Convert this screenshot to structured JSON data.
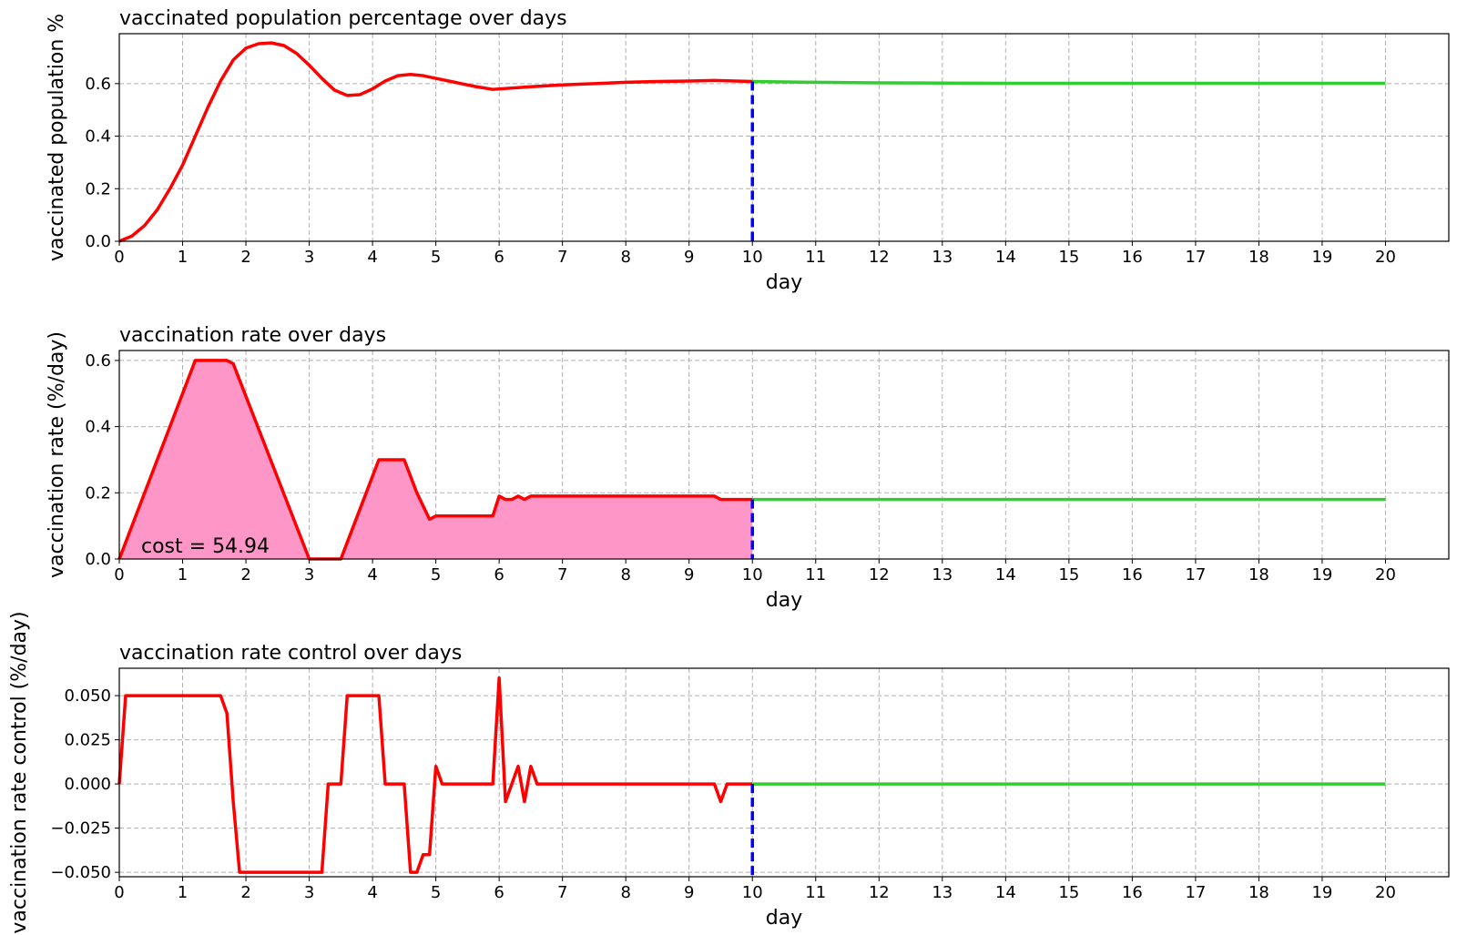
{
  "chart_data": [
    {
      "type": "line",
      "title": "vaccinated population percentage over days",
      "xlabel": "day",
      "ylabel": "vaccinated population %",
      "xlim": [
        0,
        21
      ],
      "ylim": [
        0,
        0.79
      ],
      "xticks": [
        "0",
        "1",
        "2",
        "3",
        "4",
        "5",
        "6",
        "7",
        "8",
        "9",
        "10",
        "11",
        "12",
        "13",
        "14",
        "15",
        "16",
        "17",
        "18",
        "19",
        "20"
      ],
      "yticks": [
        "0.0",
        "0.2",
        "0.4",
        "0.6"
      ],
      "grid": true,
      "split_day": 10,
      "series": [
        {
          "color": "#ff0000",
          "x": [
            0,
            0.2,
            0.4,
            0.6,
            0.8,
            1.0,
            1.2,
            1.4,
            1.6,
            1.8,
            2.0,
            2.2,
            2.4,
            2.6,
            2.8,
            3.0,
            3.2,
            3.4,
            3.6,
            3.8,
            4.0,
            4.2,
            4.4,
            4.6,
            4.8,
            5.0,
            5.3,
            5.6,
            5.9,
            6.5,
            7.0,
            7.5,
            8.0,
            8.5,
            9.0,
            9.4,
            10.0
          ],
          "y": [
            0.0,
            0.02,
            0.06,
            0.12,
            0.2,
            0.29,
            0.4,
            0.51,
            0.61,
            0.69,
            0.735,
            0.752,
            0.755,
            0.745,
            0.715,
            0.67,
            0.62,
            0.575,
            0.555,
            0.558,
            0.58,
            0.61,
            0.63,
            0.635,
            0.63,
            0.62,
            0.605,
            0.59,
            0.578,
            0.588,
            0.595,
            0.6,
            0.605,
            0.608,
            0.61,
            0.612,
            0.608
          ]
        },
        {
          "color": "#32cd32",
          "x": [
            10,
            11,
            12,
            13,
            14,
            15,
            16,
            17,
            18,
            19,
            20
          ],
          "y": [
            0.608,
            0.605,
            0.603,
            0.602,
            0.601,
            0.601,
            0.601,
            0.601,
            0.601,
            0.601,
            0.601
          ]
        }
      ]
    },
    {
      "type": "area",
      "title": "vaccination rate over days",
      "xlabel": "day",
      "ylabel": "vaccination rate (%/day)",
      "xlim": [
        0,
        21
      ],
      "ylim": [
        0,
        0.63
      ],
      "xticks": [
        "0",
        "1",
        "2",
        "3",
        "4",
        "5",
        "6",
        "7",
        "8",
        "9",
        "10",
        "11",
        "12",
        "13",
        "14",
        "15",
        "16",
        "17",
        "18",
        "19",
        "20"
      ],
      "yticks": [
        "0.0",
        "0.2",
        "0.4",
        "0.6"
      ],
      "grid": true,
      "split_day": 10,
      "fill_color": "#ff96c8",
      "annotation": "cost = 54.94",
      "series": [
        {
          "color": "#ff0000",
          "x": [
            0,
            1.2,
            1.7,
            1.8,
            3.0,
            3.5,
            4.1,
            4.5,
            4.7,
            4.9,
            5.0,
            5.9,
            6.0,
            6.1,
            6.2,
            6.3,
            6.4,
            6.5,
            9.4,
            9.5,
            10.0
          ],
          "y": [
            0.0,
            0.6,
            0.6,
            0.59,
            0.0,
            0.0,
            0.3,
            0.3,
            0.2,
            0.12,
            0.13,
            0.13,
            0.19,
            0.18,
            0.18,
            0.19,
            0.18,
            0.19,
            0.19,
            0.18,
            0.18
          ]
        },
        {
          "color": "#32cd32",
          "x": [
            10,
            20
          ],
          "y": [
            0.18,
            0.18
          ]
        }
      ]
    },
    {
      "type": "line",
      "title": "vaccination rate control over days",
      "xlabel": "day",
      "ylabel": "vaccination rate control (%/day)",
      "xlim": [
        0,
        21
      ],
      "ylim": [
        -0.0525,
        0.0655
      ],
      "xticks": [
        "0",
        "1",
        "2",
        "3",
        "4",
        "5",
        "6",
        "7",
        "8",
        "9",
        "10",
        "11",
        "12",
        "13",
        "14",
        "15",
        "16",
        "17",
        "18",
        "19",
        "20"
      ],
      "yticks": [
        "−0.050",
        "−0.025",
        "0.000",
        "0.025",
        "0.050"
      ],
      "grid": true,
      "split_day": 10,
      "series": [
        {
          "color": "#ff0000",
          "x": [
            0,
            0.1,
            1.6,
            1.7,
            1.8,
            1.9,
            3.2,
            3.3,
            3.5,
            3.6,
            4.1,
            4.2,
            4.5,
            4.6,
            4.7,
            4.8,
            4.9,
            5.0,
            5.1,
            5.9,
            6.0,
            6.1,
            6.3,
            6.4,
            6.5,
            6.6,
            9.4,
            9.5,
            9.6,
            10.0
          ],
          "y": [
            0.0,
            0.05,
            0.05,
            0.04,
            -0.01,
            -0.05,
            -0.05,
            0.0,
            0.0,
            0.05,
            0.05,
            0.0,
            0.0,
            -0.05,
            -0.05,
            -0.04,
            -0.04,
            0.01,
            0.0,
            0.0,
            0.06,
            -0.01,
            0.01,
            -0.01,
            0.01,
            0.0,
            0.0,
            -0.01,
            0.0,
            0.0
          ]
        },
        {
          "color": "#32cd32",
          "x": [
            10,
            20
          ],
          "y": [
            0.0,
            0.0
          ]
        }
      ]
    }
  ]
}
